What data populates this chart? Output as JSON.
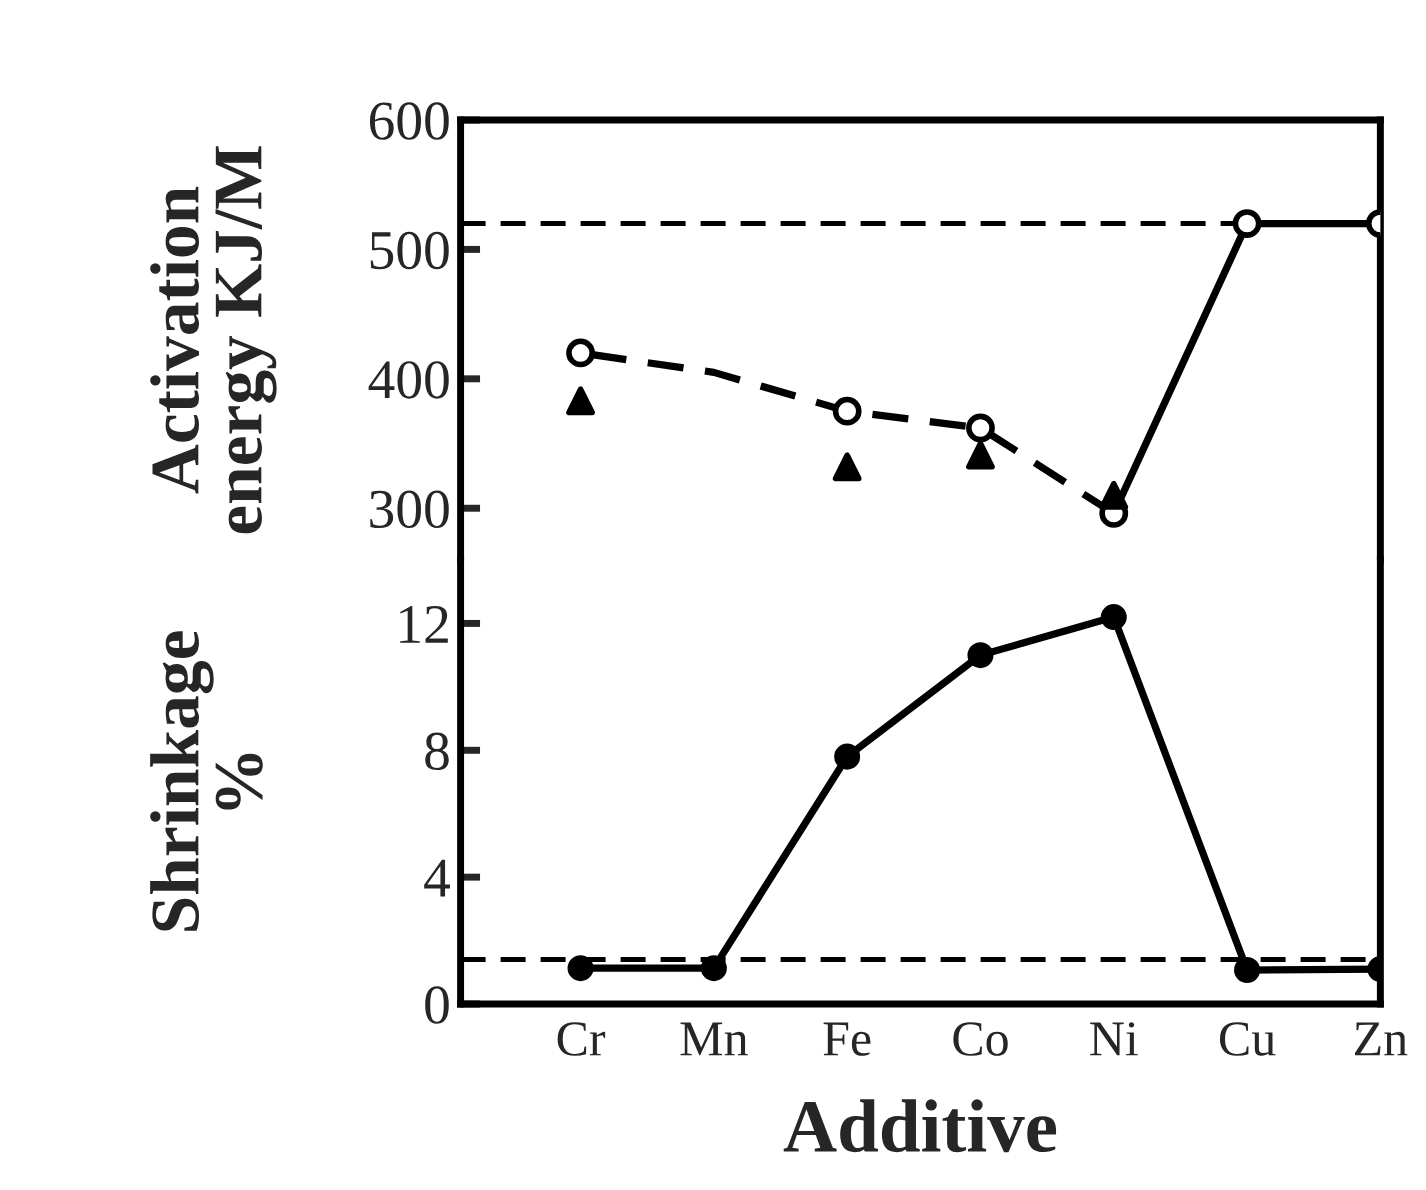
{
  "chart_data": [
    {
      "type": "line",
      "ylabel": "Activation\nenergy KJ/M",
      "ylim": [
        260,
        600
      ],
      "yticks": [
        300,
        400,
        500,
        600
      ],
      "tick_labels": "y",
      "ref_lines": [
        {
          "axis": "y",
          "value": 520,
          "color": "#000000",
          "line_style": "dashed"
        }
      ],
      "series": [
        {
          "color": "#000000",
          "line_style": "dashed",
          "values": [
            420,
            405,
            375,
            362,
            296,
            null,
            null
          ]
        },
        {
          "color": "#000000",
          "line_style": "solid",
          "values": [
            null,
            null,
            null,
            null,
            296,
            520,
            520
          ]
        },
        {
          "type": "scatter",
          "color": "#000000",
          "marker": "circle",
          "values": [
            420,
            null,
            375,
            362,
            296,
            520,
            520
          ]
        },
        {
          "type": "scatter",
          "color": "#000000",
          "marker": "triangle",
          "values": [
            383,
            null,
            332,
            341,
            310,
            null,
            null
          ]
        }
      ]
    },
    {
      "type": "line",
      "ylabel": "Shrinkage\n%",
      "xlabel": "Additive",
      "categories": [
        "Cr",
        "Mn",
        "Fe",
        "Co",
        "Ni",
        "Cu",
        "Zn"
      ],
      "ylim": [
        0,
        14
      ],
      "yticks": [
        0,
        4,
        8,
        12
      ],
      "ref_lines": [
        {
          "axis": "y",
          "value": 1.4,
          "color": "#000000",
          "line_style": "dashed"
        }
      ],
      "series": [
        {
          "color": "#000000",
          "line_style": "solid",
          "marker": "circle",
          "values": [
            1.13,
            1.13,
            7.8,
            11.0,
            12.2,
            1.07,
            1.1
          ]
        }
      ]
    }
  ]
}
